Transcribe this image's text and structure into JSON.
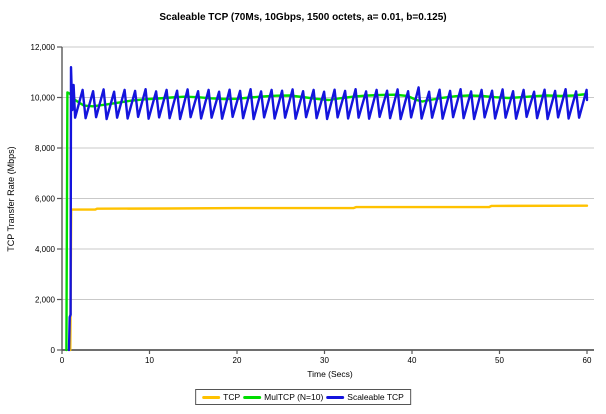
{
  "chart_data": {
    "type": "line",
    "title": "Scaleable TCP (70Ms, 10Gbps, 1500 octets, a= 0.01, b=0.125)",
    "xlabel": "Time (Secs)",
    "ylabel": "TCP Transfer Rate (Mbps)",
    "xlim": [
      0,
      60
    ],
    "ylim": [
      0,
      12000
    ],
    "x_ticks": [
      0,
      10,
      20,
      30,
      40,
      50,
      60
    ],
    "y_ticks": [
      0,
      2000,
      4000,
      6000,
      8000,
      10000,
      12000
    ],
    "y_tick_labels": [
      "0",
      "2,000",
      "4,000",
      "6,000",
      "8,000",
      "10,000",
      "12,000"
    ],
    "grid": "horizontal",
    "gridline_color": "#c9c9c9",
    "axis_color": "#595959",
    "legend_position": "bottom-center",
    "series": [
      {
        "name": "TCP",
        "color": "#FFC200",
        "points": [
          [
            0.95,
            0
          ],
          [
            1.05,
            5560
          ],
          [
            3.8,
            5560
          ],
          [
            4.0,
            5595
          ],
          [
            12,
            5605
          ],
          [
            20,
            5620
          ],
          [
            33.3,
            5620
          ],
          [
            33.6,
            5660
          ],
          [
            48.8,
            5660
          ],
          [
            49.1,
            5705
          ],
          [
            60,
            5715
          ]
        ]
      },
      {
        "name": "MulTCP (N=10)",
        "color": "#00DD00",
        "points": [
          [
            0.5,
            0
          ],
          [
            0.62,
            10200
          ],
          [
            0.9,
            10150
          ],
          [
            1.5,
            9900
          ],
          [
            2.5,
            9680
          ],
          [
            3.5,
            9650
          ],
          [
            5,
            9720
          ],
          [
            6.5,
            9800
          ],
          [
            8,
            9880
          ],
          [
            9.5,
            9930
          ],
          [
            11,
            9960
          ],
          [
            12.5,
            10000
          ],
          [
            14,
            10030
          ],
          [
            15.5,
            10010
          ],
          [
            17,
            9970
          ],
          [
            18.5,
            9940
          ],
          [
            20,
            9950
          ],
          [
            21.5,
            10000
          ],
          [
            23,
            10040
          ],
          [
            24.5,
            10070
          ],
          [
            26,
            10080
          ],
          [
            27.5,
            10020
          ],
          [
            29,
            9950
          ],
          [
            30.5,
            9900
          ],
          [
            32,
            9980
          ],
          [
            33.5,
            10040
          ],
          [
            35,
            10080
          ],
          [
            36.5,
            10100
          ],
          [
            38,
            10110
          ],
          [
            39.5,
            10060
          ],
          [
            40.5,
            9900
          ],
          [
            41.2,
            9840
          ],
          [
            42,
            9900
          ],
          [
            43.5,
            9990
          ],
          [
            45,
            10050
          ],
          [
            46.5,
            10080
          ],
          [
            48,
            10060
          ],
          [
            49.5,
            10010
          ],
          [
            51,
            9980
          ],
          [
            52.5,
            10010
          ],
          [
            54,
            10050
          ],
          [
            55.5,
            10080
          ],
          [
            57,
            10060
          ],
          [
            58.5,
            10080
          ],
          [
            59.5,
            10120
          ],
          [
            60,
            10130
          ]
        ]
      },
      {
        "name": "Scaleable TCP",
        "color": "#1414DD",
        "points": [
          [
            0.8,
            0
          ],
          [
            0.88,
            1300
          ],
          [
            0.98,
            1400
          ],
          [
            1.03,
            11200
          ],
          [
            1.18,
            9500
          ],
          [
            1.33,
            10500
          ],
          [
            1.5,
            9200
          ],
          [
            2.35,
            10300
          ],
          [
            2.7,
            9180
          ],
          [
            3.55,
            10250
          ],
          [
            3.9,
            9220
          ],
          [
            4.75,
            10320
          ],
          [
            5.1,
            9150
          ],
          [
            5.95,
            10230
          ],
          [
            6.3,
            9200
          ],
          [
            7.15,
            10300
          ],
          [
            7.5,
            9170
          ],
          [
            8.35,
            10260
          ],
          [
            8.7,
            9230
          ],
          [
            9.55,
            10330
          ],
          [
            9.9,
            9160
          ],
          [
            10.75,
            10240
          ],
          [
            11.1,
            9210
          ],
          [
            11.95,
            10300
          ],
          [
            12.3,
            9180
          ],
          [
            13.15,
            10270
          ],
          [
            13.5,
            9150
          ],
          [
            14.35,
            10320
          ],
          [
            14.7,
            9220
          ],
          [
            15.55,
            10250
          ],
          [
            15.9,
            9170
          ],
          [
            16.75,
            10300
          ],
          [
            17.1,
            9200
          ],
          [
            17.95,
            10230
          ],
          [
            18.3,
            9160
          ],
          [
            19.15,
            10310
          ],
          [
            19.5,
            9230
          ],
          [
            20.35,
            10260
          ],
          [
            20.7,
            9180
          ],
          [
            21.55,
            10330
          ],
          [
            21.9,
            9150
          ],
          [
            22.75,
            10240
          ],
          [
            23.1,
            9210
          ],
          [
            23.95,
            10300
          ],
          [
            24.3,
            9170
          ],
          [
            25.15,
            10270
          ],
          [
            25.5,
            9200
          ],
          [
            26.35,
            10320
          ],
          [
            26.7,
            9160
          ],
          [
            27.55,
            10250
          ],
          [
            27.9,
            9220
          ],
          [
            28.75,
            10300
          ],
          [
            29.1,
            9180
          ],
          [
            29.95,
            10230
          ],
          [
            30.3,
            9150
          ],
          [
            31.15,
            10310
          ],
          [
            31.5,
            9210
          ],
          [
            32.35,
            10260
          ],
          [
            32.7,
            9170
          ],
          [
            33.55,
            10330
          ],
          [
            33.9,
            9200
          ],
          [
            34.75,
            10240
          ],
          [
            35.1,
            9160
          ],
          [
            35.95,
            10300
          ],
          [
            36.3,
            9230
          ],
          [
            37.15,
            10270
          ],
          [
            37.5,
            9180
          ],
          [
            38.35,
            10320
          ],
          [
            38.7,
            9150
          ],
          [
            39.55,
            10250
          ],
          [
            39.9,
            9210
          ],
          [
            40.75,
            10400
          ],
          [
            41.1,
            9170
          ],
          [
            41.95,
            10230
          ],
          [
            42.3,
            9200
          ],
          [
            43.15,
            10310
          ],
          [
            43.5,
            9160
          ],
          [
            44.35,
            10260
          ],
          [
            44.7,
            9220
          ],
          [
            45.55,
            10330
          ],
          [
            45.9,
            9180
          ],
          [
            46.75,
            10240
          ],
          [
            47.1,
            9150
          ],
          [
            47.95,
            10300
          ],
          [
            48.3,
            9210
          ],
          [
            49.15,
            10270
          ],
          [
            49.5,
            9170
          ],
          [
            50.35,
            10320
          ],
          [
            50.7,
            9200
          ],
          [
            51.55,
            10250
          ],
          [
            51.9,
            9160
          ],
          [
            52.75,
            10300
          ],
          [
            53.1,
            9230
          ],
          [
            53.95,
            10230
          ],
          [
            54.3,
            9180
          ],
          [
            55.15,
            10310
          ],
          [
            55.5,
            9150
          ],
          [
            56.35,
            10260
          ],
          [
            56.7,
            9210
          ],
          [
            57.55,
            10330
          ],
          [
            57.9,
            9170
          ],
          [
            58.75,
            10240
          ],
          [
            59.1,
            9200
          ],
          [
            59.95,
            10300
          ],
          [
            60,
            9900
          ]
        ]
      }
    ]
  }
}
